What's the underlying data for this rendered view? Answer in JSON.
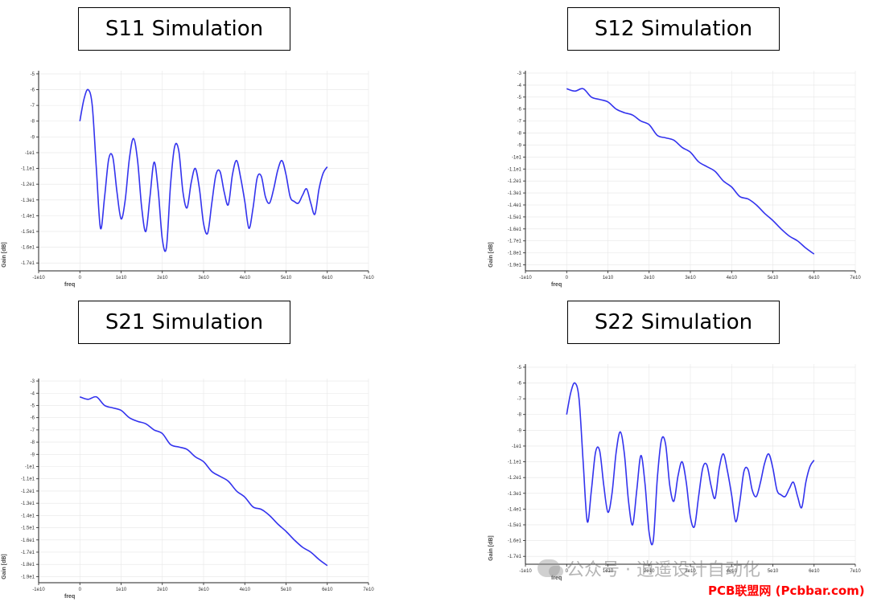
{
  "charts_meta": {
    "line_color": "#3333ee",
    "grid_color": "#e6e6e6"
  },
  "chart_data": [
    {
      "id": "s11",
      "type": "line",
      "title": "S11 Simulation",
      "xlabel": "freq",
      "ylabel": "Gain [dB]",
      "xlim": [
        -10000000000,
        70000000000
      ],
      "ylim": [
        -17.5,
        -4.8
      ],
      "xticks": [
        -10000000000,
        0,
        10000000000,
        20000000000,
        30000000000,
        40000000000,
        50000000000,
        60000000000,
        70000000000
      ],
      "xtick_labels": [
        "-1e10",
        "0",
        "1e10",
        "2e10",
        "3e10",
        "4e10",
        "5e10",
        "6e10",
        "7e10"
      ],
      "yticks": [
        -5,
        -6,
        -7,
        -8,
        -9,
        -10,
        -11,
        -12,
        -13,
        -14,
        -15,
        -16,
        -17
      ],
      "ytick_labels": [
        "-5",
        "-6",
        "-7",
        "-8",
        "-9",
        "-1e1",
        "-1.1e1",
        "-1.2e1",
        "-1.3e1",
        "-1.4e1",
        "-1.5e1",
        "-1.6e1",
        "-1.7e1"
      ],
      "series": [
        {
          "x": [
            0,
            1000000000,
            2000000000,
            3000000000,
            4000000000,
            5000000000,
            6000000000,
            7000000000,
            8000000000,
            9000000000,
            10000000000,
            11000000000,
            12000000000,
            13000000000,
            14000000000,
            15000000000,
            16000000000,
            17000000000,
            18000000000,
            19000000000,
            20000000000,
            21000000000,
            22000000000,
            23000000000,
            24000000000,
            25000000000,
            26000000000,
            27000000000,
            28000000000,
            29000000000,
            30000000000,
            31000000000,
            32000000000,
            33000000000,
            34000000000,
            35000000000,
            36000000000,
            37000000000,
            38000000000,
            39000000000,
            40000000000,
            41000000000,
            42000000000,
            43000000000,
            44000000000,
            45000000000,
            46000000000,
            47000000000,
            48000000000,
            49000000000,
            50000000000,
            51000000000,
            52000000000,
            53000000000,
            54000000000,
            55000000000,
            56000000000,
            57000000000,
            58000000000,
            59000000000,
            60000000000
          ],
          "y": [
            -8.0,
            -6.6,
            -6.0,
            -7.0,
            -11.0,
            -14.8,
            -12.8,
            -10.4,
            -10.3,
            -12.5,
            -14.2,
            -13.0,
            -10.4,
            -9.1,
            -10.5,
            -13.5,
            -15.0,
            -12.8,
            -10.6,
            -12.4,
            -15.5,
            -16.0,
            -12.0,
            -9.6,
            -9.9,
            -12.5,
            -13.5,
            -11.9,
            -11.0,
            -12.3,
            -14.5,
            -15.1,
            -13.2,
            -11.4,
            -11.2,
            -12.5,
            -13.3,
            -11.4,
            -10.5,
            -11.6,
            -13.1,
            -14.8,
            -13.5,
            -11.6,
            -11.5,
            -12.8,
            -13.2,
            -12.3,
            -11.1,
            -10.5,
            -11.4,
            -12.8,
            -13.1,
            -13.2,
            -12.7,
            -12.3,
            -13.2,
            -13.9,
            -12.3,
            -11.3,
            -10.9
          ]
        }
      ]
    },
    {
      "id": "s12",
      "type": "line",
      "title": "S12 Simulation",
      "xlabel": "freq",
      "ylabel": "Gain [dB]",
      "xlim": [
        -10000000000,
        70000000000
      ],
      "ylim": [
        -19.5,
        -2.8
      ],
      "xticks": [
        -10000000000,
        0,
        10000000000,
        20000000000,
        30000000000,
        40000000000,
        50000000000,
        60000000000,
        70000000000
      ],
      "xtick_labels": [
        "-1e10",
        "0",
        "1e10",
        "2e10",
        "3e10",
        "4e10",
        "5e10",
        "6e10",
        "7e10"
      ],
      "yticks": [
        -3,
        -4,
        -5,
        -6,
        -7,
        -8,
        -9,
        -10,
        -11,
        -12,
        -13,
        -14,
        -15,
        -16,
        -17,
        -18,
        -19
      ],
      "ytick_labels": [
        "-3",
        "-4",
        "-5",
        "-6",
        "-7",
        "-8",
        "-9",
        "-1e1",
        "-1.1e1",
        "-1.2e1",
        "-1.3e1",
        "-1.4e1",
        "-1.5e1",
        "-1.6e1",
        "-1.7e1",
        "-1.8e1",
        "-1.9e1"
      ],
      "series": [
        {
          "x": [
            0,
            2000000000,
            4000000000,
            6000000000,
            8000000000,
            10000000000,
            12000000000,
            14000000000,
            16000000000,
            18000000000,
            20000000000,
            22000000000,
            24000000000,
            26000000000,
            28000000000,
            30000000000,
            32000000000,
            34000000000,
            36000000000,
            38000000000,
            40000000000,
            42000000000,
            44000000000,
            46000000000,
            48000000000,
            50000000000,
            52000000000,
            54000000000,
            56000000000,
            58000000000,
            60000000000
          ],
          "y": [
            -4.3,
            -4.5,
            -4.3,
            -5.0,
            -5.2,
            -5.4,
            -6.0,
            -6.3,
            -6.5,
            -7.0,
            -7.3,
            -8.2,
            -8.4,
            -8.6,
            -9.2,
            -9.6,
            -10.4,
            -10.8,
            -11.2,
            -12.0,
            -12.5,
            -13.3,
            -13.5,
            -14.0,
            -14.7,
            -15.3,
            -16.0,
            -16.6,
            -17.0,
            -17.6,
            -18.1
          ]
        }
      ]
    },
    {
      "id": "s21",
      "type": "line",
      "title": "S21 Simulation",
      "xlabel": "freq",
      "ylabel": "Gain [dB]",
      "xlim": [
        -10000000000,
        70000000000
      ],
      "ylim": [
        -19.5,
        -2.8
      ],
      "xticks": [
        -10000000000,
        0,
        10000000000,
        20000000000,
        30000000000,
        40000000000,
        50000000000,
        60000000000,
        70000000000
      ],
      "xtick_labels": [
        "-1e10",
        "0",
        "1e10",
        "2e10",
        "3e10",
        "4e10",
        "5e10",
        "6e10",
        "7e10"
      ],
      "yticks": [
        -3,
        -4,
        -5,
        -6,
        -7,
        -8,
        -9,
        -10,
        -11,
        -12,
        -13,
        -14,
        -15,
        -16,
        -17,
        -18,
        -19
      ],
      "ytick_labels": [
        "-3",
        "-4",
        "-5",
        "-6",
        "-7",
        "-8",
        "-9",
        "-1e1",
        "-1.1e1",
        "-1.2e1",
        "-1.3e1",
        "-1.4e1",
        "-1.5e1",
        "-1.6e1",
        "-1.7e1",
        "-1.8e1",
        "-1.9e1"
      ],
      "series": [
        {
          "x": [
            0,
            2000000000,
            4000000000,
            6000000000,
            8000000000,
            10000000000,
            12000000000,
            14000000000,
            16000000000,
            18000000000,
            20000000000,
            22000000000,
            24000000000,
            26000000000,
            28000000000,
            30000000000,
            32000000000,
            34000000000,
            36000000000,
            38000000000,
            40000000000,
            42000000000,
            44000000000,
            46000000000,
            48000000000,
            50000000000,
            52000000000,
            54000000000,
            56000000000,
            58000000000,
            60000000000
          ],
          "y": [
            -4.3,
            -4.5,
            -4.3,
            -5.0,
            -5.2,
            -5.4,
            -6.0,
            -6.3,
            -6.5,
            -7.0,
            -7.3,
            -8.2,
            -8.4,
            -8.6,
            -9.2,
            -9.6,
            -10.4,
            -10.8,
            -11.2,
            -12.0,
            -12.5,
            -13.3,
            -13.5,
            -14.0,
            -14.7,
            -15.3,
            -16.0,
            -16.6,
            -17.0,
            -17.6,
            -18.1
          ]
        }
      ]
    },
    {
      "id": "s22",
      "type": "line",
      "title": "S22 Simulation",
      "xlabel": "freq",
      "ylabel": "Gain [dB]",
      "xlim": [
        -10000000000,
        70000000000
      ],
      "ylim": [
        -17.5,
        -4.8
      ],
      "xticks": [
        -10000000000,
        0,
        10000000000,
        20000000000,
        30000000000,
        40000000000,
        50000000000,
        60000000000,
        70000000000
      ],
      "xtick_labels": [
        "-1e10",
        "0",
        "1e10",
        "2e10",
        "3e10",
        "4e10",
        "5e10",
        "6e10",
        "7e10"
      ],
      "yticks": [
        -5,
        -6,
        -7,
        -8,
        -9,
        -10,
        -11,
        -12,
        -13,
        -14,
        -15,
        -16,
        -17
      ],
      "ytick_labels": [
        "-5",
        "-6",
        "-7",
        "-8",
        "-9",
        "-1e1",
        "-1.1e1",
        "-1.2e1",
        "-1.3e1",
        "-1.4e1",
        "-1.5e1",
        "-1.6e1",
        "-1.7e1"
      ],
      "series": [
        {
          "x": [
            0,
            1000000000,
            2000000000,
            3000000000,
            4000000000,
            5000000000,
            6000000000,
            7000000000,
            8000000000,
            9000000000,
            10000000000,
            11000000000,
            12000000000,
            13000000000,
            14000000000,
            15000000000,
            16000000000,
            17000000000,
            18000000000,
            19000000000,
            20000000000,
            21000000000,
            22000000000,
            23000000000,
            24000000000,
            25000000000,
            26000000000,
            27000000000,
            28000000000,
            29000000000,
            30000000000,
            31000000000,
            32000000000,
            33000000000,
            34000000000,
            35000000000,
            36000000000,
            37000000000,
            38000000000,
            39000000000,
            40000000000,
            41000000000,
            42000000000,
            43000000000,
            44000000000,
            45000000000,
            46000000000,
            47000000000,
            48000000000,
            49000000000,
            50000000000,
            51000000000,
            52000000000,
            53000000000,
            54000000000,
            55000000000,
            56000000000,
            57000000000,
            58000000000,
            59000000000,
            60000000000
          ],
          "y": [
            -8.0,
            -6.6,
            -6.0,
            -7.0,
            -11.0,
            -14.8,
            -12.8,
            -10.4,
            -10.3,
            -12.5,
            -14.2,
            -13.0,
            -10.4,
            -9.1,
            -10.5,
            -13.5,
            -15.0,
            -12.8,
            -10.6,
            -12.4,
            -15.5,
            -16.0,
            -12.0,
            -9.6,
            -9.9,
            -12.5,
            -13.5,
            -11.9,
            -11.0,
            -12.3,
            -14.5,
            -15.1,
            -13.2,
            -11.4,
            -11.2,
            -12.5,
            -13.3,
            -11.4,
            -10.5,
            -11.6,
            -13.1,
            -14.8,
            -13.5,
            -11.6,
            -11.5,
            -12.8,
            -13.2,
            -12.3,
            -11.1,
            -10.5,
            -11.4,
            -12.8,
            -13.1,
            -13.2,
            -12.7,
            -12.3,
            -13.2,
            -13.9,
            -12.3,
            -11.3,
            -10.9
          ]
        }
      ]
    }
  ],
  "watermark": {
    "text": "公众号 · 逍遥设计自动化",
    "site": "PCB联盟网 (Pcbbar.com)"
  }
}
